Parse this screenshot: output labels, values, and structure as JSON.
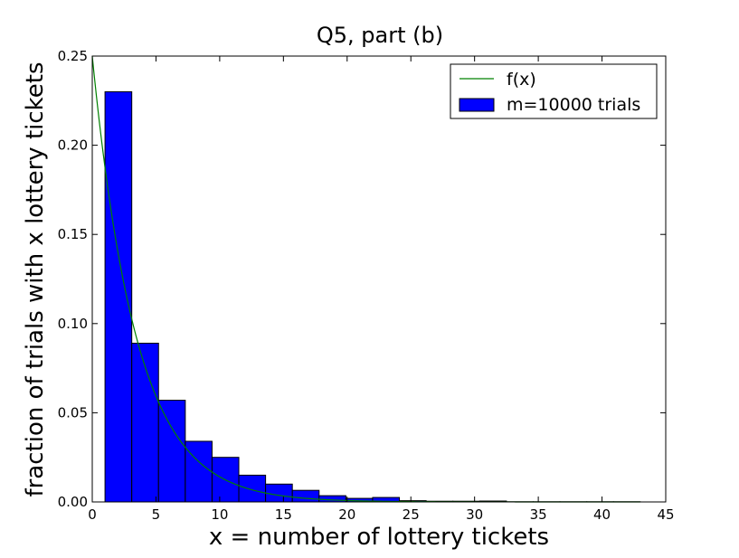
{
  "chart_data": {
    "type": "bar",
    "title": "Q5, part (b)",
    "xlabel": "x = number of lottery tickets",
    "ylabel": "fraction of trials with x lottery tickets",
    "xlim": [
      0,
      45
    ],
    "ylim": [
      0,
      0.25
    ],
    "xticks": [
      0,
      5,
      10,
      15,
      20,
      25,
      30,
      35,
      40,
      45
    ],
    "yticks": [
      0.0,
      0.05,
      0.1,
      0.15,
      0.2,
      0.25
    ],
    "grid": false,
    "legend_position": "top-right",
    "bins": [
      {
        "x0": 1.0,
        "x1": 3.1,
        "value": 0.23
      },
      {
        "x0": 3.1,
        "x1": 5.2,
        "value": 0.089
      },
      {
        "x0": 5.2,
        "x1": 7.3,
        "value": 0.057
      },
      {
        "x0": 7.3,
        "x1": 9.4,
        "value": 0.034
      },
      {
        "x0": 9.4,
        "x1": 11.5,
        "value": 0.025
      },
      {
        "x0": 11.5,
        "x1": 13.6,
        "value": 0.015
      },
      {
        "x0": 13.6,
        "x1": 15.7,
        "value": 0.01
      },
      {
        "x0": 15.7,
        "x1": 17.8,
        "value": 0.0065
      },
      {
        "x0": 17.8,
        "x1": 19.9,
        "value": 0.0035
      },
      {
        "x0": 19.9,
        "x1": 22.0,
        "value": 0.002
      },
      {
        "x0": 22.0,
        "x1": 24.1,
        "value": 0.0025
      },
      {
        "x0": 24.1,
        "x1": 26.2,
        "value": 0.0007
      },
      {
        "x0": 26.2,
        "x1": 28.3,
        "value": 0.0004
      },
      {
        "x0": 28.3,
        "x1": 30.4,
        "value": 0.0004
      },
      {
        "x0": 30.4,
        "x1": 32.5,
        "value": 0.0005
      },
      {
        "x0": 32.5,
        "x1": 34.6,
        "value": 0.0001
      },
      {
        "x0": 34.6,
        "x1": 36.7,
        "value": 0.0001
      },
      {
        "x0": 36.7,
        "x1": 38.8,
        "value": 0.0001
      },
      {
        "x0": 38.8,
        "x1": 40.9,
        "value": 0.0001
      },
      {
        "x0": 40.9,
        "x1": 43.0,
        "value": 0.0001
      }
    ],
    "series": [
      {
        "name": "f(x)",
        "type": "line",
        "function": "0.25*0.75^x",
        "x_range": [
          0,
          43
        ],
        "color": "#008000"
      },
      {
        "name": "m=10000 trials",
        "type": "bar",
        "color": "#0000ff"
      }
    ]
  }
}
